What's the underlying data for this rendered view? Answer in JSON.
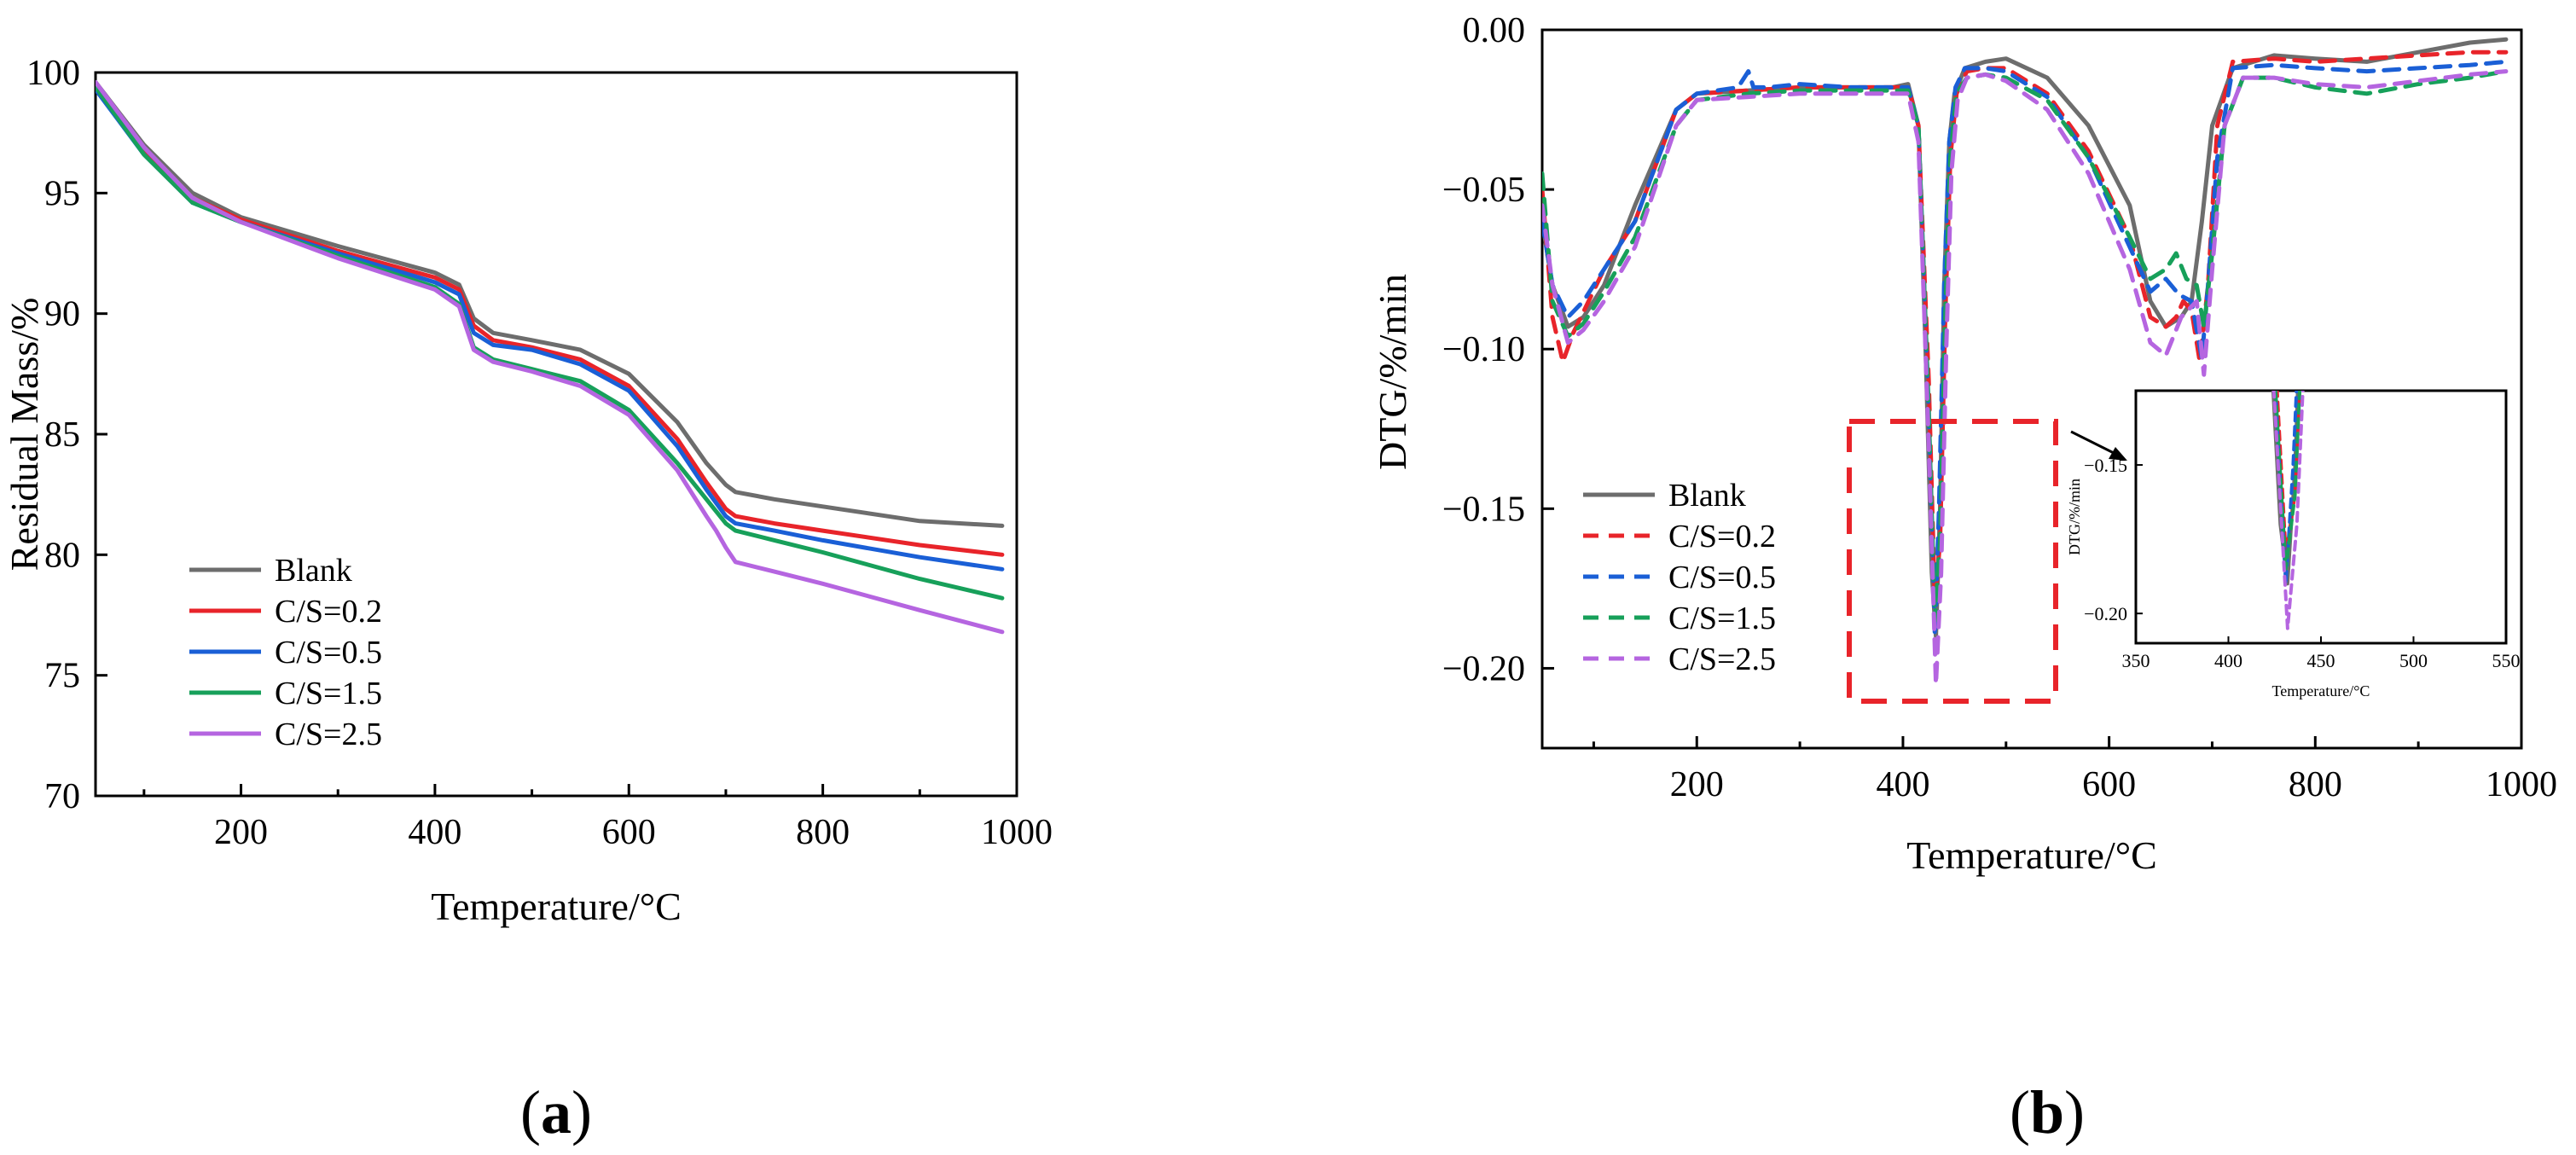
{
  "chart_data": [
    {
      "type": "line",
      "panel_label": "a",
      "xlabel": "Temperature/°C",
      "ylabel": "Residual Mass/%",
      "xlim": [
        50,
        1000
      ],
      "ylim": [
        70,
        100
      ],
      "xticks": [
        200,
        400,
        600,
        800,
        1000
      ],
      "yticks": [
        70,
        75,
        80,
        85,
        90,
        95,
        100
      ],
      "legend_position": "bottom-left",
      "series": [
        {
          "name": "Blank",
          "color": "#6d6d6d",
          "dash": false,
          "x": [
            50,
            100,
            150,
            200,
            300,
            400,
            425,
            440,
            460,
            500,
            550,
            600,
            650,
            680,
            700,
            710,
            750,
            800,
            900,
            985
          ],
          "y": [
            99.6,
            97.0,
            95.0,
            94.0,
            92.8,
            91.7,
            91.2,
            89.8,
            89.2,
            88.9,
            88.5,
            87.5,
            85.5,
            83.8,
            82.9,
            82.6,
            82.3,
            82.0,
            81.4,
            81.2
          ]
        },
        {
          "name": "C/S=0.2",
          "color": "#e8242a",
          "dash": false,
          "x": [
            50,
            100,
            150,
            200,
            300,
            400,
            425,
            440,
            460,
            500,
            550,
            600,
            650,
            680,
            700,
            710,
            750,
            800,
            900,
            985
          ],
          "y": [
            99.5,
            96.8,
            94.8,
            93.9,
            92.6,
            91.5,
            91.0,
            89.5,
            88.9,
            88.6,
            88.1,
            87.0,
            84.8,
            83.0,
            81.9,
            81.6,
            81.3,
            81.0,
            80.4,
            80.0
          ]
        },
        {
          "name": "C/S=0.5",
          "color": "#1a5fd6",
          "dash": false,
          "x": [
            50,
            100,
            150,
            200,
            300,
            400,
            425,
            440,
            460,
            500,
            550,
            600,
            650,
            680,
            700,
            710,
            750,
            800,
            900,
            985
          ],
          "y": [
            99.3,
            96.6,
            94.6,
            93.8,
            92.5,
            91.3,
            90.8,
            89.2,
            88.7,
            88.5,
            87.9,
            86.8,
            84.5,
            82.7,
            81.6,
            81.3,
            81.0,
            80.6,
            79.9,
            79.4
          ]
        },
        {
          "name": "C/S=1.5",
          "color": "#17a05a",
          "dash": false,
          "x": [
            50,
            100,
            150,
            200,
            300,
            400,
            425,
            440,
            460,
            500,
            550,
            600,
            650,
            680,
            700,
            710,
            750,
            800,
            900,
            985
          ],
          "y": [
            99.4,
            96.6,
            94.6,
            93.8,
            92.4,
            91.1,
            90.4,
            88.6,
            88.1,
            87.7,
            87.2,
            86.0,
            83.8,
            82.3,
            81.3,
            81.0,
            80.6,
            80.1,
            79.0,
            78.2
          ]
        },
        {
          "name": "C/S=2.5",
          "color": "#b565e0",
          "dash": false,
          "x": [
            50,
            100,
            150,
            200,
            300,
            400,
            425,
            440,
            460,
            500,
            550,
            600,
            650,
            680,
            690,
            700,
            710,
            750,
            800,
            900,
            985
          ],
          "y": [
            99.6,
            96.9,
            94.8,
            93.8,
            92.3,
            91.0,
            90.3,
            88.5,
            88.0,
            87.6,
            87.0,
            85.8,
            83.5,
            81.6,
            81.0,
            80.3,
            79.7,
            79.3,
            78.8,
            77.7,
            76.8
          ]
        }
      ]
    },
    {
      "type": "line",
      "panel_label": "b",
      "xlabel": "Temperature/°C",
      "ylabel": "DTG/%/min",
      "xlim": [
        50,
        1000
      ],
      "ylim": [
        -0.225,
        0.0
      ],
      "xticks": [
        200,
        400,
        600,
        800,
        1000
      ],
      "yticks": [
        0.0,
        -0.05,
        -0.1,
        -0.15,
        -0.2
      ],
      "ytick_labels": [
        "0.00",
        "−0.05",
        "−0.10",
        "−0.15",
        "−0.20"
      ],
      "legend_position": "bottom-left",
      "annotation": "red dashed box around the 350–550 °C peak, magnified in inset",
      "series": [
        {
          "name": "Blank",
          "color": "#6d6d6d",
          "dash": false,
          "x": [
            50,
            60,
            75,
            90,
            110,
            140,
            180,
            200,
            250,
            300,
            350,
            390,
            405,
            415,
            422,
            428,
            432,
            436,
            440,
            445,
            450,
            460,
            480,
            500,
            540,
            580,
            620,
            640,
            655,
            670,
            680,
            690,
            700,
            720,
            760,
            800,
            850,
            900,
            950,
            985
          ],
          "y": [
            -0.06,
            -0.08,
            -0.093,
            -0.09,
            -0.08,
            -0.055,
            -0.025,
            -0.02,
            -0.019,
            -0.018,
            -0.018,
            -0.018,
            -0.017,
            -0.03,
            -0.1,
            -0.17,
            -0.19,
            -0.15,
            -0.08,
            -0.035,
            -0.02,
            -0.012,
            -0.01,
            -0.009,
            -0.015,
            -0.03,
            -0.055,
            -0.085,
            -0.093,
            -0.09,
            -0.085,
            -0.06,
            -0.03,
            -0.012,
            -0.008,
            -0.009,
            -0.01,
            -0.007,
            -0.004,
            -0.003
          ]
        },
        {
          "name": "C/S=0.2",
          "color": "#e8242a",
          "dash": true,
          "x": [
            50,
            60,
            70,
            80,
            95,
            110,
            140,
            180,
            200,
            250,
            300,
            350,
            390,
            405,
            415,
            425,
            431,
            436,
            441,
            446,
            452,
            462,
            480,
            500,
            540,
            580,
            620,
            640,
            655,
            665,
            672,
            680,
            688,
            696,
            705,
            720,
            760,
            800,
            850,
            900,
            950,
            985
          ],
          "y": [
            -0.05,
            -0.09,
            -0.104,
            -0.095,
            -0.085,
            -0.075,
            -0.06,
            -0.025,
            -0.02,
            -0.019,
            -0.018,
            -0.018,
            -0.018,
            -0.018,
            -0.03,
            -0.11,
            -0.18,
            -0.16,
            -0.09,
            -0.04,
            -0.02,
            -0.013,
            -0.012,
            -0.012,
            -0.02,
            -0.038,
            -0.065,
            -0.09,
            -0.093,
            -0.09,
            -0.085,
            -0.088,
            -0.104,
            -0.08,
            -0.03,
            -0.01,
            -0.009,
            -0.01,
            -0.009,
            -0.008,
            -0.007,
            -0.007
          ]
        },
        {
          "name": "C/S=0.5",
          "color": "#1a5fd6",
          "dash": true,
          "x": [
            50,
            60,
            75,
            90,
            110,
            140,
            180,
            200,
            240,
            250,
            255,
            270,
            300,
            350,
            390,
            405,
            415,
            425,
            431,
            435,
            440,
            445,
            451,
            460,
            480,
            500,
            540,
            580,
            620,
            640,
            655,
            668,
            680,
            690,
            696,
            705,
            720,
            760,
            800,
            850,
            900,
            950,
            985
          ],
          "y": [
            -0.06,
            -0.08,
            -0.09,
            -0.085,
            -0.075,
            -0.06,
            -0.025,
            -0.02,
            -0.018,
            -0.013,
            -0.018,
            -0.018,
            -0.017,
            -0.018,
            -0.018,
            -0.018,
            -0.03,
            -0.12,
            -0.19,
            -0.15,
            -0.08,
            -0.035,
            -0.018,
            -0.012,
            -0.012,
            -0.013,
            -0.021,
            -0.04,
            -0.068,
            -0.082,
            -0.078,
            -0.083,
            -0.085,
            -0.103,
            -0.08,
            -0.04,
            -0.012,
            -0.011,
            -0.012,
            -0.013,
            -0.012,
            -0.011,
            -0.01
          ]
        },
        {
          "name": "C/S=1.5",
          "color": "#17a05a",
          "dash": true,
          "x": [
            50,
            60,
            75,
            90,
            110,
            140,
            180,
            200,
            250,
            300,
            350,
            390,
            405,
            415,
            425,
            431,
            436,
            441,
            446,
            452,
            462,
            480,
            500,
            540,
            580,
            620,
            640,
            655,
            665,
            675,
            685,
            692,
            700,
            712,
            730,
            760,
            800,
            850,
            900,
            950,
            985
          ],
          "y": [
            -0.045,
            -0.085,
            -0.096,
            -0.092,
            -0.082,
            -0.065,
            -0.03,
            -0.022,
            -0.02,
            -0.019,
            -0.019,
            -0.019,
            -0.019,
            -0.03,
            -0.12,
            -0.185,
            -0.16,
            -0.09,
            -0.04,
            -0.02,
            -0.015,
            -0.014,
            -0.015,
            -0.022,
            -0.04,
            -0.065,
            -0.078,
            -0.075,
            -0.07,
            -0.078,
            -0.08,
            -0.093,
            -0.07,
            -0.03,
            -0.015,
            -0.015,
            -0.018,
            -0.02,
            -0.017,
            -0.015,
            -0.013
          ]
        },
        {
          "name": "C/S=2.5",
          "color": "#b565e0",
          "dash": true,
          "x": [
            50,
            60,
            75,
            90,
            110,
            140,
            180,
            200,
            250,
            300,
            350,
            390,
            405,
            415,
            425,
            432,
            437,
            442,
            447,
            453,
            462,
            480,
            500,
            540,
            580,
            620,
            640,
            655,
            670,
            685,
            692,
            700,
            712,
            730,
            760,
            800,
            850,
            900,
            950,
            985
          ],
          "y": [
            -0.055,
            -0.08,
            -0.098,
            -0.094,
            -0.085,
            -0.068,
            -0.03,
            -0.022,
            -0.021,
            -0.02,
            -0.02,
            -0.02,
            -0.02,
            -0.035,
            -0.13,
            -0.205,
            -0.17,
            -0.1,
            -0.045,
            -0.022,
            -0.015,
            -0.014,
            -0.016,
            -0.025,
            -0.045,
            -0.075,
            -0.098,
            -0.102,
            -0.09,
            -0.085,
            -0.108,
            -0.075,
            -0.03,
            -0.015,
            -0.015,
            -0.017,
            -0.018,
            -0.016,
            -0.014,
            -0.013
          ]
        }
      ],
      "inset": {
        "xlabel": "Temperature/°C",
        "ylabel": "DTG/%/min",
        "xlim": [
          350,
          550
        ],
        "ylim": [
          -0.21,
          -0.125
        ],
        "xticks": [
          350,
          400,
          450,
          500,
          550
        ],
        "yticks": [
          -0.15,
          -0.2
        ],
        "ytick_labels": [
          "−0.15",
          "−0.20"
        ]
      }
    }
  ],
  "panels": {
    "a_open": "(",
    "a_letter": "a",
    "a_close": ")",
    "b_open": "(",
    "b_letter": "b",
    "b_close": ")"
  }
}
